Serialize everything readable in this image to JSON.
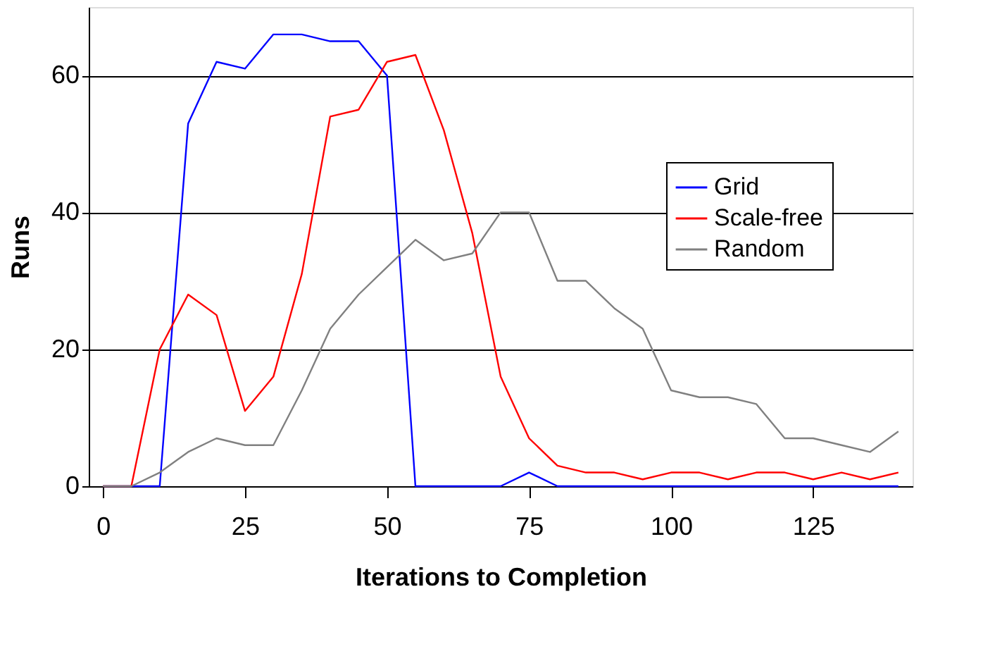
{
  "chart_data": {
    "type": "line",
    "xlabel": "Iterations to Completion",
    "ylabel": "Runs",
    "x": [
      0,
      5,
      10,
      15,
      20,
      25,
      30,
      35,
      40,
      45,
      50,
      55,
      60,
      65,
      70,
      75,
      80,
      85,
      90,
      95,
      100,
      105,
      110,
      115,
      120,
      125,
      130,
      135,
      140
    ],
    "xlim": [
      -2.5,
      142.5
    ],
    "xticks": [
      0,
      25,
      50,
      75,
      100,
      125
    ],
    "ylim": [
      0,
      70
    ],
    "yticks": [
      0,
      20,
      40,
      60
    ],
    "grid": "y",
    "legend": "right",
    "marker": "none",
    "line_style": "solid",
    "series": [
      {
        "name": "Grid",
        "color": "#0000ff",
        "values": [
          0,
          0,
          0,
          53,
          62,
          61,
          66,
          66,
          65,
          65,
          60,
          0,
          0,
          0,
          0,
          2,
          0,
          0,
          0,
          0,
          0,
          0,
          0,
          0,
          0,
          0,
          0,
          0,
          0
        ]
      },
      {
        "name": "Scale-free",
        "color": "#ff0000",
        "values": [
          0,
          0,
          20,
          28,
          25,
          11,
          16,
          31,
          54,
          55,
          62,
          63,
          52,
          37,
          16,
          7,
          3,
          2,
          2,
          1,
          2,
          2,
          1,
          2,
          2,
          1,
          2,
          1,
          2
        ]
      },
      {
        "name": "Random",
        "color": "#808080",
        "values": [
          0,
          0,
          2,
          5,
          7,
          6,
          6,
          14,
          23,
          28,
          32,
          36,
          33,
          34,
          40,
          40,
          30,
          30,
          26,
          23,
          14,
          13,
          13,
          12,
          7,
          7,
          6,
          5,
          8
        ]
      }
    ]
  }
}
